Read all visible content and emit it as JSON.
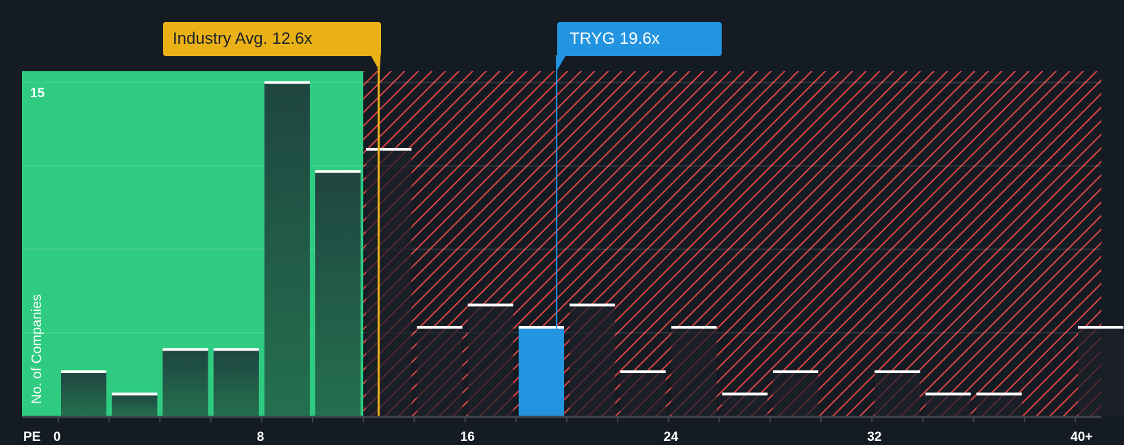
{
  "colors": {
    "background": "#151b23",
    "undervalued_region": "#2ecb81",
    "overvalued_hatch": "#e04545",
    "bar_fill": "#1d2a30",
    "company_bar": "#2394e0",
    "industry_marker": "#eab116",
    "company_marker": "#2394e0",
    "axis": "#40454d"
  },
  "labels": {
    "industry": "Industry Avg. 12.6x",
    "company": "TRYG 19.6x",
    "y_axis_title": "No. of Companies",
    "y_max_tick": "15",
    "x_axis_prefix": "PE"
  },
  "x_ticks": [
    {
      "value": 0,
      "label": "0"
    },
    {
      "value": 8,
      "label": "8"
    },
    {
      "value": 16,
      "label": "16"
    },
    {
      "value": 24,
      "label": "24"
    },
    {
      "value": 32,
      "label": "32"
    },
    {
      "value": 40,
      "label": "40+"
    }
  ],
  "chart_data": {
    "type": "bar",
    "title": "",
    "xlabel": "PE",
    "ylabel": "No. of Companies",
    "bin_width": 2,
    "categories": [
      "0-2",
      "2-4",
      "4-6",
      "6-8",
      "8-10",
      "10-12",
      "12-14",
      "14-16",
      "16-18",
      "18-20",
      "20-22",
      "22-24",
      "24-26",
      "26-28",
      "28-30",
      "30-32",
      "32-34",
      "34-36",
      "36-38",
      "38-40",
      "40+"
    ],
    "values": [
      2,
      1,
      3,
      3,
      15,
      11,
      12,
      4,
      5,
      4,
      5,
      2,
      4,
      1,
      2,
      0,
      2,
      1,
      1,
      0,
      4
    ],
    "highlight_index": 9,
    "highlight_label": "TRYG",
    "markers": [
      {
        "name": "Industry Avg.",
        "value": 12.6,
        "label": "Industry Avg. 12.6x"
      },
      {
        "name": "TRYG",
        "value": 19.6,
        "label": "TRYG 19.6x"
      }
    ],
    "undervalued_threshold": 12,
    "ylim": [
      0,
      15.5
    ],
    "y_gridlines": [
      3.75,
      7.5,
      11.25,
      15
    ],
    "x_tick_labels": [
      "0",
      "8",
      "16",
      "24",
      "32",
      "40+"
    ],
    "legend": "none",
    "grid": true
  }
}
